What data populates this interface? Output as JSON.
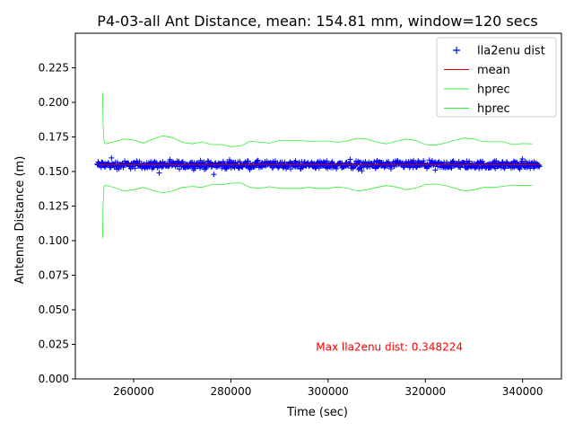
{
  "chart_data": {
    "type": "line",
    "title": "P4-03-all Ant Distance, mean: 154.81 mm, window=120 secs",
    "xlabel": "Time (sec)",
    "ylabel": "Antenna Distance (m)",
    "xlim": [
      248000,
      348000
    ],
    "ylim": [
      0.0,
      0.25
    ],
    "xticks": [
      260000,
      280000,
      300000,
      320000,
      340000
    ],
    "xtick_labels": [
      "260000",
      "280000",
      "300000",
      "320000",
      "340000"
    ],
    "yticks": [
      0.0,
      0.025,
      0.05,
      0.075,
      0.1,
      0.125,
      0.15,
      0.175,
      0.2,
      0.225
    ],
    "ytick_labels": [
      "0.000",
      "0.025",
      "0.050",
      "0.075",
      "0.100",
      "0.125",
      "0.150",
      "0.175",
      "0.200",
      "0.225"
    ],
    "grid": false,
    "legend_position": "top-right",
    "annotation": {
      "text": "Max lla2enu dist: 0.348224",
      "x": 297500,
      "y": 0.0205,
      "color": "#ff0000"
    },
    "series": [
      {
        "name": "lla2enu dist",
        "type": "scatter",
        "marker": "+",
        "color": "#0000ff",
        "x_range": [
          252500,
          343500
        ],
        "center": 0.1548,
        "spread": 0.0025,
        "count": 900
      },
      {
        "name": "mean",
        "type": "line",
        "color": "#cc0000",
        "x": [
          252500,
          343500
        ],
        "y": [
          0.1548,
          0.1548
        ]
      },
      {
        "name": "hprec",
        "type": "line",
        "color": "#33ee33",
        "x": [
          253600,
          253700,
          253900,
          254200,
          256000,
          258000,
          260000,
          262000,
          264000,
          266000,
          268000,
          270000,
          272000,
          274000,
          276000,
          278000,
          280000,
          282000,
          284000,
          286000,
          288000,
          290000,
          292000,
          294000,
          296000,
          298000,
          300000,
          302000,
          304000,
          306000,
          308000,
          310000,
          312000,
          314000,
          316000,
          318000,
          320000,
          322000,
          324000,
          326000,
          328000,
          330000,
          332000,
          334000,
          336000,
          338000,
          340000,
          342000
        ],
        "y": [
          0.207,
          0.185,
          0.172,
          0.17,
          0.1715,
          0.1735,
          0.1728,
          0.1705,
          0.1735,
          0.1758,
          0.1745,
          0.1712,
          0.17,
          0.1715,
          0.1695,
          0.1695,
          0.168,
          0.1685,
          0.1718,
          0.1712,
          0.1705,
          0.1725,
          0.1725,
          0.1725,
          0.1718,
          0.172,
          0.172,
          0.1712,
          0.1722,
          0.174,
          0.1735,
          0.1712,
          0.17,
          0.1718,
          0.1735,
          0.1725,
          0.1695,
          0.169,
          0.1705,
          0.1725,
          0.1742,
          0.1735,
          0.1715,
          0.1715,
          0.1715,
          0.1695,
          0.1702,
          0.17
        ]
      },
      {
        "name": "hprec",
        "type": "line",
        "color": "#33ee33",
        "x": [
          253600,
          253700,
          253900,
          254200,
          256000,
          258000,
          260000,
          262000,
          264000,
          266000,
          268000,
          270000,
          272000,
          274000,
          276000,
          278000,
          280000,
          282000,
          284000,
          286000,
          288000,
          290000,
          292000,
          294000,
          296000,
          298000,
          300000,
          302000,
          304000,
          306000,
          308000,
          310000,
          312000,
          314000,
          316000,
          318000,
          320000,
          322000,
          324000,
          326000,
          328000,
          330000,
          332000,
          334000,
          336000,
          338000,
          340000,
          342000
        ],
        "y": [
          0.102,
          0.125,
          0.139,
          0.14,
          0.1385,
          0.1358,
          0.1368,
          0.1385,
          0.1362,
          0.1345,
          0.136,
          0.1385,
          0.1392,
          0.1385,
          0.1405,
          0.1405,
          0.1415,
          0.1418,
          0.1385,
          0.1378,
          0.139,
          0.1378,
          0.1378,
          0.1378,
          0.1385,
          0.1378,
          0.1378,
          0.1388,
          0.138,
          0.136,
          0.1368,
          0.1385,
          0.1398,
          0.1388,
          0.1368,
          0.138,
          0.1405,
          0.141,
          0.14,
          0.138,
          0.136,
          0.1368,
          0.1385,
          0.1385,
          0.1392,
          0.1402,
          0.1398,
          0.14
        ]
      }
    ]
  }
}
